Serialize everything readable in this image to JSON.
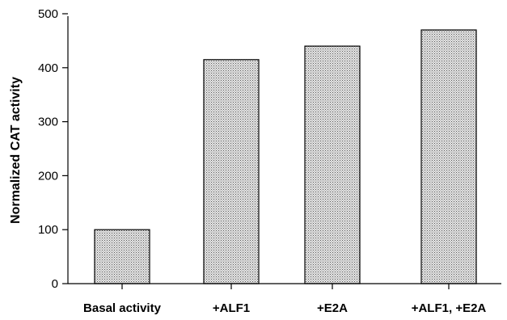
{
  "chart_data": {
    "type": "bar",
    "title": "",
    "xlabel": "",
    "ylabel": "Normalized CAT activity",
    "categories": [
      "Basal activity",
      "+ALF1",
      "+E2A",
      "+ALF1, +E2A"
    ],
    "values": [
      100,
      415,
      440,
      470
    ],
    "ylim": [
      0,
      500
    ],
    "yticks": [
      0,
      100,
      200,
      300,
      400,
      500
    ],
    "grid": false,
    "legend": "none",
    "bar_fill": "stippled",
    "colors": {
      "bar_fill": "#e4e4e4",
      "bar_dots": "#5a5a5a",
      "axis": "#000000"
    }
  }
}
